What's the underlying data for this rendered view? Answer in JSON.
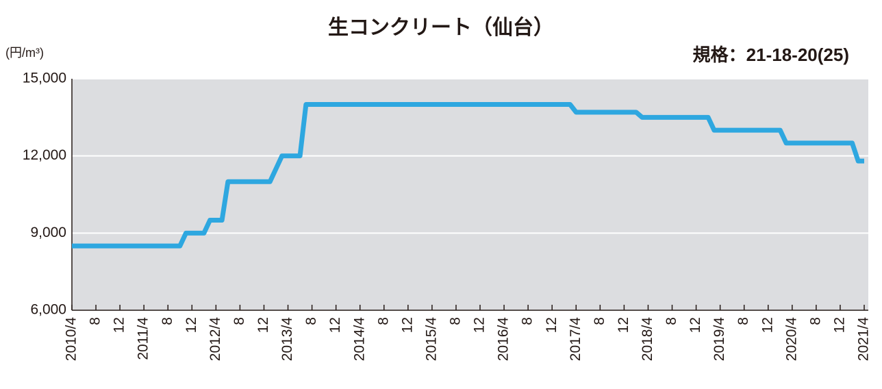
{
  "chart_data": {
    "type": "line",
    "title": "生コンクリート（仙台）",
    "subtitle": "規格：21-18-20(25)",
    "y_unit": "(円/m³)",
    "color": "#2ea7e0",
    "categories": [
      "2010/4",
      null,
      null,
      null,
      "8",
      null,
      null,
      null,
      "12",
      null,
      null,
      null,
      "2011/4",
      null,
      null,
      null,
      "8",
      null,
      null,
      null,
      "12",
      null,
      null,
      null,
      "2012/4",
      null,
      null,
      null,
      "8",
      null,
      null,
      null,
      "12",
      null,
      null,
      null,
      "2013/4",
      null,
      null,
      null,
      "8",
      null,
      null,
      null,
      "12",
      null,
      null,
      null,
      "2014/4",
      null,
      null,
      null,
      "8",
      null,
      null,
      null,
      "12",
      null,
      null,
      null,
      "2015/4",
      null,
      null,
      null,
      "8",
      null,
      null,
      null,
      "12",
      null,
      null,
      null,
      "2016/4",
      null,
      null,
      null,
      "8",
      null,
      null,
      null,
      "12",
      null,
      null,
      null,
      "2017/4",
      null,
      null,
      null,
      "8",
      null,
      null,
      null,
      "12",
      null,
      null,
      null,
      "2018/4",
      null,
      null,
      null,
      "8",
      null,
      null,
      null,
      "12",
      null,
      null,
      null,
      "2019/4",
      null,
      null,
      null,
      "8",
      null,
      null,
      null,
      "12",
      null,
      null,
      null,
      "2020/4",
      null,
      null,
      null,
      "8",
      null,
      null,
      null,
      "12",
      null,
      null,
      null,
      "2021/4"
    ],
    "values": [
      8500,
      8500,
      8500,
      8500,
      8500,
      8500,
      8500,
      8500,
      8500,
      8500,
      8500,
      8500,
      8500,
      8500,
      8500,
      8500,
      8500,
      8500,
      8500,
      9000,
      9000,
      9000,
      9000,
      9500,
      9500,
      9500,
      11000,
      11000,
      11000,
      11000,
      11000,
      11000,
      11000,
      11000,
      11500,
      12000,
      12000,
      12000,
      12000,
      14000,
      14000,
      14000,
      14000,
      14000,
      14000,
      14000,
      14000,
      14000,
      14000,
      14000,
      14000,
      14000,
      14000,
      14000,
      14000,
      14000,
      14000,
      14000,
      14000,
      14000,
      14000,
      14000,
      14000,
      14000,
      14000,
      14000,
      14000,
      14000,
      14000,
      14000,
      14000,
      14000,
      14000,
      14000,
      14000,
      14000,
      14000,
      14000,
      14000,
      14000,
      14000,
      14000,
      14000,
      14000,
      13700,
      13700,
      13700,
      13700,
      13700,
      13700,
      13700,
      13700,
      13700,
      13700,
      13700,
      13500,
      13500,
      13500,
      13500,
      13500,
      13500,
      13500,
      13500,
      13500,
      13500,
      13500,
      13500,
      13000,
      13000,
      13000,
      13000,
      13000,
      13000,
      13000,
      13000,
      13000,
      13000,
      13000,
      13000,
      12500,
      12500,
      12500,
      12500,
      12500,
      12500,
      12500,
      12500,
      12500,
      12500,
      12500,
      12500,
      11800,
      11800
    ],
    "ylim": [
      6000,
      15000
    ],
    "yticks": [
      {
        "value": 6000,
        "label": "6,000"
      },
      {
        "value": 9000,
        "label": "9,000"
      },
      {
        "value": 12000,
        "label": "12,000"
      },
      {
        "value": 15000,
        "label": "15,000"
      }
    ],
    "grid": true
  }
}
